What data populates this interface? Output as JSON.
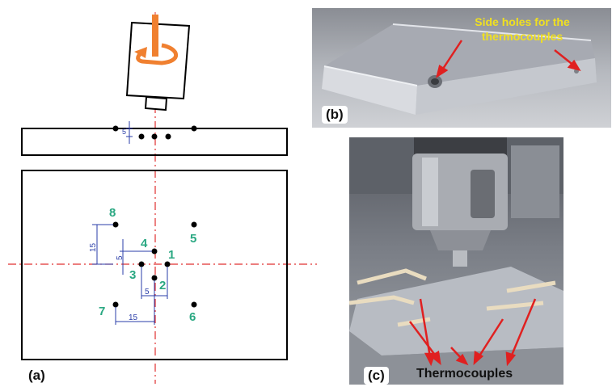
{
  "panel_a": {
    "label": "(a)",
    "dims": {
      "v5_small": "5",
      "v15": "15",
      "v5": "5",
      "h5": "5",
      "h15": "15"
    },
    "points": [
      {
        "id": "1",
        "label": "1"
      },
      {
        "id": "2",
        "label": "2"
      },
      {
        "id": "3",
        "label": "3"
      },
      {
        "id": "4",
        "label": "4"
      },
      {
        "id": "5",
        "label": "5"
      },
      {
        "id": "6",
        "label": "6"
      },
      {
        "id": "7",
        "label": "7"
      },
      {
        "id": "8",
        "label": "8"
      }
    ],
    "colors": {
      "line": "#000000",
      "centerline": "#e03030",
      "dimension": "#2a3da8",
      "number": "#2aa882",
      "tool_arrow": "#f08030"
    }
  },
  "panel_b": {
    "label": "(b)",
    "annotation_line1": "Side holes for the",
    "annotation_line2": "thermocouples",
    "colors": {
      "annotation": "#f0e020",
      "arrow": "#e02020"
    }
  },
  "panel_c": {
    "label": "(c)",
    "annotation": "Thermocouples",
    "colors": {
      "arrow": "#e02020"
    }
  }
}
